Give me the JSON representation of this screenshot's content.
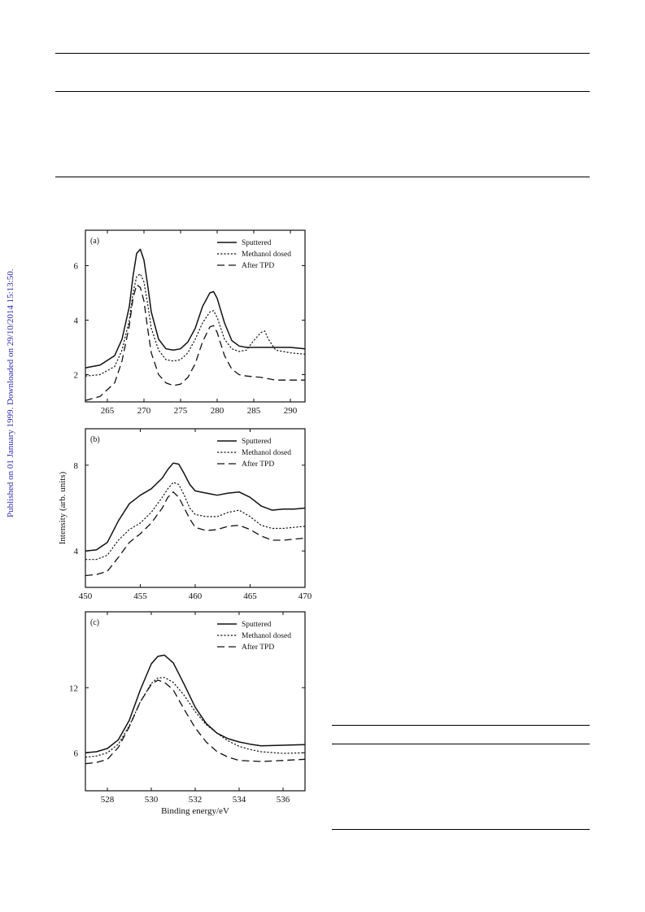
{
  "sidebar_note": "Published on 01 January 1999. Downloaded on 29/10/2014 15:13:50.",
  "chart_data": [
    {
      "type": "line",
      "panel_label": "(a)",
      "xlabel": "",
      "ylabel": "",
      "xlim": [
        262,
        292
      ],
      "ylim": [
        1,
        7.3
      ],
      "xticks": [
        265,
        270,
        275,
        280,
        285,
        290
      ],
      "yticks": [
        2,
        4,
        6
      ],
      "legend": {
        "placement": "top-right",
        "entries": [
          "Sputtered",
          "Methanol dosed",
          "After TPD"
        ]
      },
      "series": [
        {
          "name": "Sputtered",
          "style": "solid",
          "x": [
            262,
            264,
            266,
            267,
            268,
            268.5,
            269,
            269.5,
            270,
            270.5,
            271,
            272,
            273,
            274,
            275,
            276,
            277,
            278,
            279,
            279.5,
            280,
            281,
            282,
            283,
            284,
            286,
            288,
            290,
            292
          ],
          "y": [
            2.25,
            2.35,
            2.7,
            3.3,
            4.5,
            5.6,
            6.45,
            6.6,
            6.2,
            5.3,
            4.3,
            3.3,
            2.95,
            2.9,
            2.95,
            3.2,
            3.7,
            4.5,
            5.0,
            5.05,
            4.8,
            3.9,
            3.25,
            3.05,
            3.0,
            3.0,
            3.0,
            3.0,
            2.95
          ]
        },
        {
          "name": "Methanol dosed",
          "style": "dotted",
          "x": [
            262,
            264,
            266,
            267,
            268,
            268.5,
            269,
            269.5,
            270,
            270.5,
            271,
            272,
            273,
            274,
            275,
            276,
            277,
            278,
            279,
            279.5,
            280,
            281,
            282,
            283,
            284,
            285,
            286,
            286.5,
            287,
            288,
            290,
            292
          ],
          "y": [
            1.95,
            2.0,
            2.3,
            2.9,
            4.0,
            5.0,
            5.6,
            5.7,
            5.4,
            4.6,
            3.7,
            2.9,
            2.55,
            2.5,
            2.55,
            2.8,
            3.3,
            3.9,
            4.3,
            4.35,
            4.1,
            3.3,
            2.95,
            2.85,
            2.9,
            3.25,
            3.55,
            3.6,
            3.3,
            2.9,
            2.8,
            2.75
          ]
        },
        {
          "name": "After TPD",
          "style": "dashed",
          "x": [
            262,
            264,
            266,
            267,
            268,
            268.5,
            269,
            269.5,
            270,
            270.5,
            271,
            272,
            273,
            274,
            275,
            276,
            277,
            278,
            279,
            279.5,
            280,
            281,
            282,
            283,
            284,
            286,
            288,
            290,
            292
          ],
          "y": [
            1.05,
            1.2,
            1.7,
            2.5,
            3.8,
            4.8,
            5.3,
            5.2,
            4.7,
            3.7,
            2.8,
            2.0,
            1.7,
            1.6,
            1.65,
            1.9,
            2.4,
            3.2,
            3.75,
            3.8,
            3.55,
            2.7,
            2.2,
            2.0,
            1.95,
            1.9,
            1.8,
            1.8,
            1.8
          ]
        }
      ]
    },
    {
      "type": "line",
      "panel_label": "(b)",
      "xlabel": "",
      "ylabel": "Intensity (arb. units)",
      "xlim": [
        450,
        470
      ],
      "ylim": [
        2.3,
        9.7
      ],
      "xticks": [
        450,
        455,
        460,
        465,
        470
      ],
      "yticks": [
        4,
        8
      ],
      "legend": {
        "placement": "top-right",
        "entries": [
          "Sputtered",
          "Methanol dosed",
          "After TPD"
        ]
      },
      "series": [
        {
          "name": "Sputtered",
          "style": "solid",
          "x": [
            450,
            451,
            452,
            453,
            454,
            455,
            456,
            457,
            457.5,
            458,
            458.5,
            459,
            459.5,
            460,
            461,
            462,
            463,
            464,
            465,
            466,
            467,
            468,
            469,
            470
          ],
          "y": [
            4.0,
            4.05,
            4.4,
            5.4,
            6.2,
            6.6,
            6.9,
            7.4,
            7.8,
            8.1,
            8.05,
            7.6,
            7.1,
            6.8,
            6.7,
            6.6,
            6.7,
            6.75,
            6.5,
            6.1,
            5.9,
            5.95,
            5.95,
            6.0
          ]
        },
        {
          "name": "Methanol dosed",
          "style": "dotted",
          "x": [
            450,
            451,
            452,
            453,
            454,
            455,
            456,
            457,
            457.5,
            458,
            458.5,
            459,
            459.5,
            460,
            461,
            462,
            463,
            464,
            465,
            466,
            467,
            468,
            469,
            470
          ],
          "y": [
            3.6,
            3.6,
            3.8,
            4.5,
            5.0,
            5.3,
            5.8,
            6.5,
            6.9,
            7.2,
            7.1,
            6.6,
            6.0,
            5.7,
            5.6,
            5.6,
            5.8,
            5.9,
            5.6,
            5.2,
            5.05,
            5.05,
            5.1,
            5.15
          ]
        },
        {
          "name": "After TPD",
          "style": "dashed",
          "x": [
            450,
            451,
            452,
            453,
            454,
            455,
            456,
            457,
            457.5,
            458,
            458.5,
            459,
            459.5,
            460,
            461,
            462,
            463,
            464,
            465,
            466,
            467,
            468,
            469,
            470
          ],
          "y": [
            2.85,
            2.9,
            3.05,
            3.7,
            4.4,
            4.8,
            5.3,
            6.0,
            6.5,
            6.75,
            6.5,
            6.0,
            5.5,
            5.1,
            4.95,
            5.0,
            5.15,
            5.2,
            5.0,
            4.7,
            4.5,
            4.5,
            4.55,
            4.6
          ]
        }
      ]
    },
    {
      "type": "line",
      "panel_label": "(c)",
      "xlabel": "Binding energy/eV",
      "ylabel": "",
      "xlim": [
        527,
        537
      ],
      "ylim": [
        2.5,
        19
      ],
      "xticks": [
        528,
        530,
        532,
        534,
        536
      ],
      "yticks": [
        6,
        12
      ],
      "legend": {
        "placement": "top-right",
        "entries": [
          "Sputtered",
          "Methanol dosed",
          "After TPD"
        ]
      },
      "series": [
        {
          "name": "Sputtered",
          "style": "solid",
          "x": [
            527,
            527.5,
            528,
            528.5,
            529,
            529.5,
            530,
            530.3,
            530.6,
            531,
            531.5,
            532,
            532.5,
            533,
            533.5,
            534,
            534.5,
            535,
            536,
            537
          ],
          "y": [
            6.0,
            6.1,
            6.4,
            7.2,
            9.0,
            11.8,
            14.2,
            14.9,
            15.0,
            14.3,
            12.3,
            10.2,
            8.7,
            7.8,
            7.3,
            7.0,
            6.8,
            6.65,
            6.7,
            6.75
          ]
        },
        {
          "name": "Methanol dosed",
          "style": "dotted",
          "x": [
            527,
            527.5,
            528,
            528.5,
            529,
            529.5,
            530,
            530.3,
            530.6,
            531,
            531.5,
            532,
            532.5,
            533,
            533.5,
            534,
            534.5,
            535,
            536,
            537
          ],
          "y": [
            5.6,
            5.7,
            6.0,
            6.8,
            8.5,
            10.7,
            12.4,
            12.9,
            12.95,
            12.5,
            11.3,
            9.8,
            8.6,
            7.8,
            7.1,
            6.6,
            6.3,
            6.1,
            5.95,
            6.0
          ]
        },
        {
          "name": "After TPD",
          "style": "dashed",
          "x": [
            527,
            527.5,
            528,
            528.5,
            529,
            529.5,
            530,
            530.3,
            530.6,
            531,
            531.5,
            532,
            532.5,
            533,
            533.5,
            534,
            534.5,
            535,
            536,
            537
          ],
          "y": [
            5.0,
            5.1,
            5.4,
            6.5,
            8.4,
            10.7,
            12.3,
            12.7,
            12.5,
            11.8,
            10.0,
            8.3,
            7.0,
            6.1,
            5.6,
            5.3,
            5.25,
            5.2,
            5.3,
            5.4
          ]
        }
      ]
    }
  ]
}
